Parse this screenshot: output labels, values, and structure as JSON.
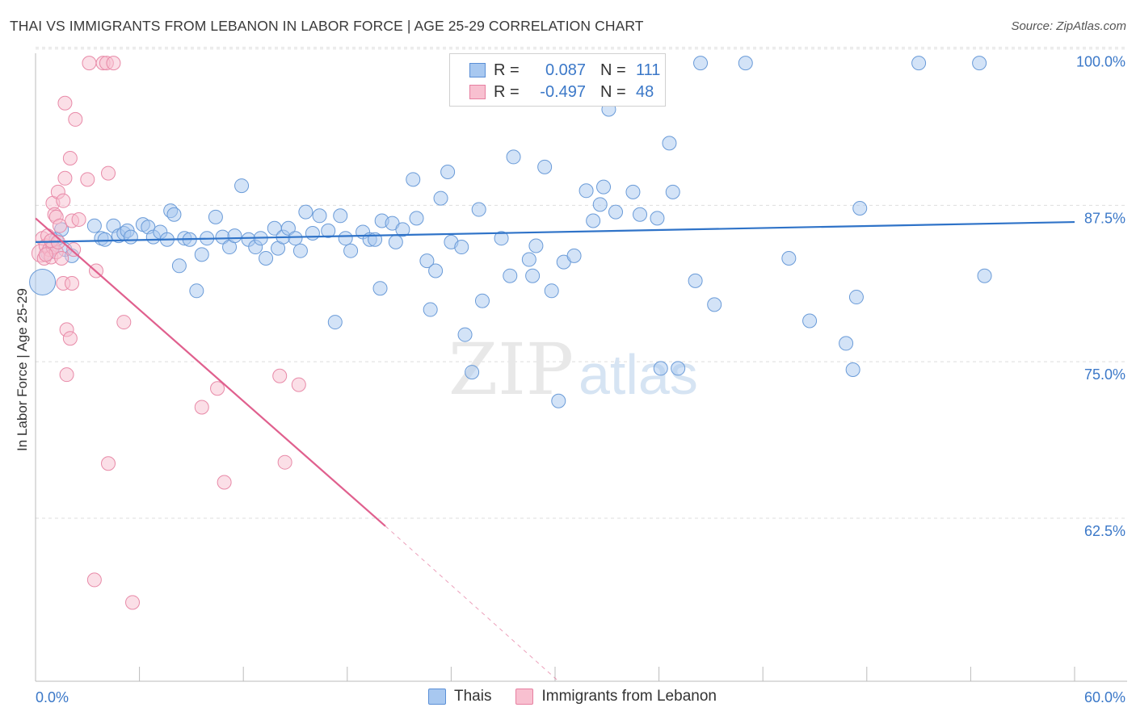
{
  "title": "THAI VS IMMIGRANTS FROM LEBANON IN LABOR FORCE | AGE 25-29 CORRELATION CHART",
  "source": "Source: ZipAtlas.com",
  "watermark": {
    "zip": "ZIP",
    "atlas": "atlas"
  },
  "legend_top": {
    "rows": [
      {
        "r_label": "R =",
        "r_value": "0.087",
        "n_label": "N =",
        "n_value": "111",
        "color": "#a8c8f0",
        "border": "#5a8fd6"
      },
      {
        "r_label": "R =",
        "r_value": "-0.497",
        "n_label": "N =",
        "n_value": "48",
        "color": "#f8c0d0",
        "border": "#e77fa0"
      }
    ]
  },
  "legend_bottom": {
    "items": [
      {
        "label": "Thais",
        "color": "#a8c8f0",
        "border": "#5a8fd6"
      },
      {
        "label": "Immigrants from Lebanon",
        "color": "#f8c0d0",
        "border": "#e77fa0"
      }
    ]
  },
  "colors": {
    "blue_fill": "#a8c8f0",
    "blue_stroke": "#6a9bd8",
    "blue_line": "#2f73c8",
    "pink_fill": "#f8c0d0",
    "pink_stroke": "#e88aa8",
    "pink_line": "#e0608e",
    "axis_text": "#3b78c8",
    "grid": "#dddddd"
  },
  "chart_data": {
    "type": "scatter",
    "title": "THAI VS IMMIGRANTS FROM LEBANON IN LABOR FORCE | AGE 25-29 CORRELATION CHART",
    "xlabel": "",
    "ylabel": "In Labor Force | Age 25-29",
    "xlim": [
      0,
      60
    ],
    "ylim": [
      50.5,
      101.2
    ],
    "x_tick_labels": [
      "0.0%",
      "60.0%"
    ],
    "y_ticks": [
      62.5,
      75.0,
      87.5,
      100.0
    ],
    "y_tick_labels": [
      "62.5%",
      "75.0%",
      "87.5%",
      "100.0%"
    ],
    "grid": true,
    "legend": "top-center",
    "series": [
      {
        "name": "Thais",
        "r": 0.087,
        "n": 111,
        "trend": {
          "x": [
            0,
            60
          ],
          "y": [
            85.6,
            87.2
          ],
          "style": "solid"
        },
        "points": [
          [
            0.4,
            82.4,
            1
          ],
          [
            0.7,
            84.7,
            0
          ],
          [
            1.0,
            85.2,
            0
          ],
          [
            1.2,
            85.8,
            0
          ],
          [
            1.5,
            86.6,
            0
          ],
          [
            1.7,
            85.0,
            0
          ],
          [
            2.1,
            84.5,
            0
          ],
          [
            3.4,
            86.9,
            0
          ],
          [
            3.8,
            85.9,
            0
          ],
          [
            4.0,
            85.8,
            0
          ],
          [
            4.5,
            86.9,
            0
          ],
          [
            4.8,
            86.1,
            0
          ],
          [
            5.1,
            86.3,
            0
          ],
          [
            5.3,
            86.5,
            0
          ],
          [
            5.5,
            86.0,
            0
          ],
          [
            6.2,
            87.0,
            0
          ],
          [
            6.5,
            86.8,
            0
          ],
          [
            6.8,
            86.0,
            0
          ],
          [
            7.2,
            86.4,
            0
          ],
          [
            7.6,
            85.8,
            0
          ],
          [
            7.8,
            88.1,
            0
          ],
          [
            8.0,
            87.8,
            0
          ],
          [
            8.3,
            83.7,
            0
          ],
          [
            8.6,
            85.9,
            0
          ],
          [
            8.9,
            85.8,
            0
          ],
          [
            9.3,
            81.7,
            0
          ],
          [
            9.6,
            84.6,
            0
          ],
          [
            9.9,
            85.9,
            0
          ],
          [
            10.4,
            87.6,
            0
          ],
          [
            10.8,
            86.0,
            0
          ],
          [
            11.2,
            85.2,
            0
          ],
          [
            11.5,
            86.1,
            0
          ],
          [
            11.9,
            90.1,
            0
          ],
          [
            12.3,
            85.8,
            0
          ],
          [
            12.7,
            85.2,
            0
          ],
          [
            13.0,
            85.9,
            0
          ],
          [
            13.3,
            84.3,
            0
          ],
          [
            13.8,
            86.7,
            0
          ],
          [
            14.0,
            85.1,
            0
          ],
          [
            14.3,
            86.0,
            0
          ],
          [
            14.6,
            86.7,
            0
          ],
          [
            15.0,
            85.9,
            0
          ],
          [
            15.3,
            84.9,
            0
          ],
          [
            15.6,
            88.0,
            0
          ],
          [
            16.0,
            86.3,
            0
          ],
          [
            16.4,
            87.7,
            0
          ],
          [
            16.9,
            86.5,
            0
          ],
          [
            17.3,
            79.2,
            0
          ],
          [
            17.6,
            87.7,
            0
          ],
          [
            17.9,
            85.9,
            0
          ],
          [
            18.2,
            84.9,
            0
          ],
          [
            18.9,
            86.4,
            0
          ],
          [
            19.3,
            85.8,
            0
          ],
          [
            19.6,
            85.8,
            0
          ],
          [
            19.9,
            81.9,
            0
          ],
          [
            20.0,
            87.3,
            0
          ],
          [
            20.6,
            87.1,
            0
          ],
          [
            20.8,
            85.6,
            0
          ],
          [
            21.2,
            86.6,
            0
          ],
          [
            21.8,
            90.6,
            0
          ],
          [
            22.0,
            87.5,
            0
          ],
          [
            22.6,
            84.1,
            0
          ],
          [
            22.8,
            80.2,
            0
          ],
          [
            23.1,
            83.3,
            0
          ],
          [
            23.4,
            89.1,
            0
          ],
          [
            23.8,
            91.2,
            0
          ],
          [
            24.0,
            85.6,
            0
          ],
          [
            24.6,
            85.2,
            0
          ],
          [
            24.8,
            78.2,
            0
          ],
          [
            25.2,
            75.2,
            0
          ],
          [
            25.6,
            88.2,
            0
          ],
          [
            25.8,
            80.9,
            0
          ],
          [
            26.4,
            99.9,
            0
          ],
          [
            26.9,
            85.9,
            0
          ],
          [
            27.4,
            82.9,
            0
          ],
          [
            27.6,
            92.4,
            0
          ],
          [
            28.5,
            84.2,
            0
          ],
          [
            28.7,
            82.9,
            0
          ],
          [
            28.9,
            85.3,
            0
          ],
          [
            29.4,
            91.6,
            0
          ],
          [
            29.8,
            81.7,
            0
          ],
          [
            30.5,
            84.0,
            0
          ],
          [
            30.2,
            72.9,
            0
          ],
          [
            31.1,
            84.5,
            0
          ],
          [
            31.8,
            89.7,
            0
          ],
          [
            32.2,
            87.3,
            0
          ],
          [
            32.6,
            88.6,
            0
          ],
          [
            32.8,
            90.0,
            0
          ],
          [
            33.1,
            96.2,
            0
          ],
          [
            33.5,
            88.0,
            0
          ],
          [
            34.5,
            89.6,
            0
          ],
          [
            34.9,
            87.8,
            0
          ],
          [
            35.9,
            87.5,
            0
          ],
          [
            36.1,
            75.5,
            0
          ],
          [
            36.6,
            93.5,
            0
          ],
          [
            36.8,
            89.6,
            0
          ],
          [
            37.1,
            75.5,
            0
          ],
          [
            38.1,
            82.5,
            0
          ],
          [
            38.4,
            99.9,
            0
          ],
          [
            39.2,
            80.6,
            0
          ],
          [
            41.0,
            99.9,
            0
          ],
          [
            43.5,
            84.3,
            0
          ],
          [
            44.7,
            79.3,
            0
          ],
          [
            46.8,
            77.5,
            0
          ],
          [
            47.2,
            75.4,
            0
          ],
          [
            47.4,
            81.2,
            0
          ],
          [
            47.6,
            88.3,
            0
          ],
          [
            51.0,
            99.9,
            0
          ],
          [
            54.5,
            99.9,
            0
          ],
          [
            54.8,
            82.9,
            0
          ]
        ]
      },
      {
        "name": "Immigrants from Lebanon",
        "r": -0.497,
        "n": 48,
        "trend": {
          "x": [
            0,
            20.2
          ],
          "y": [
            87.5,
            62.9
          ],
          "style": "solid",
          "dash_x": [
            20.2,
            30.2
          ],
          "dash_y": [
            62.9,
            50.5
          ]
        },
        "points": [
          [
            0.3,
            84.7,
            1
          ],
          [
            0.4,
            85.9,
            0
          ],
          [
            0.5,
            84.3,
            0
          ],
          [
            0.6,
            85.3,
            0
          ],
          [
            0.7,
            86.1,
            0
          ],
          [
            0.8,
            85.0,
            0
          ],
          [
            0.9,
            84.4,
            0
          ],
          [
            1.0,
            85.2,
            0
          ],
          [
            1.0,
            88.7,
            0
          ],
          [
            1.1,
            87.8,
            0
          ],
          [
            1.2,
            84.8,
            0
          ],
          [
            1.2,
            87.6,
            0
          ],
          [
            1.3,
            89.6,
            0
          ],
          [
            1.4,
            86.9,
            0
          ],
          [
            1.5,
            84.3,
            0
          ],
          [
            1.6,
            82.3,
            0
          ],
          [
            1.6,
            88.9,
            0
          ],
          [
            1.7,
            90.7,
            0
          ],
          [
            1.7,
            96.7,
            0
          ],
          [
            1.8,
            78.6,
            0
          ],
          [
            1.8,
            75.0,
            0
          ],
          [
            2.0,
            92.3,
            0
          ],
          [
            2.0,
            77.9,
            0
          ],
          [
            2.1,
            87.3,
            0
          ],
          [
            2.1,
            82.3,
            0
          ],
          [
            2.3,
            95.4,
            0
          ],
          [
            2.2,
            85.0,
            0
          ],
          [
            3.0,
            90.6,
            0
          ],
          [
            3.1,
            99.9,
            0
          ],
          [
            3.4,
            58.6,
            0
          ],
          [
            3.5,
            83.3,
            0
          ],
          [
            3.9,
            99.9,
            0
          ],
          [
            4.1,
            99.9,
            0
          ],
          [
            4.2,
            91.1,
            0
          ],
          [
            4.2,
            67.9,
            0
          ],
          [
            4.5,
            99.9,
            0
          ],
          [
            5.1,
            79.2,
            0
          ],
          [
            5.6,
            56.8,
            0
          ],
          [
            9.6,
            72.4,
            0
          ],
          [
            10.5,
            73.9,
            0
          ],
          [
            10.9,
            66.4,
            0
          ],
          [
            14.1,
            74.9,
            0
          ],
          [
            14.4,
            68.0,
            0
          ],
          [
            15.2,
            74.2,
            0
          ],
          [
            2.5,
            87.4,
            0
          ],
          [
            0.9,
            85.7,
            0
          ],
          [
            1.3,
            85.6,
            0
          ],
          [
            0.6,
            84.6,
            0
          ]
        ]
      }
    ]
  }
}
